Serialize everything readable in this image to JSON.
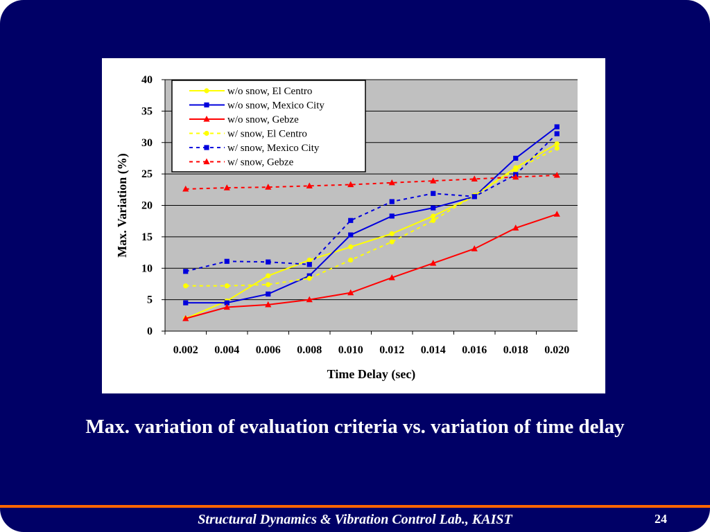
{
  "slide": {
    "caption": "Max. variation of evaluation criteria vs. variation of time delay",
    "footer": "Structural Dynamics & Vibration Control Lab., KAIST",
    "page_number": "24",
    "background_color": "#000066",
    "rule_color": "#ff6600"
  },
  "chart_data": {
    "type": "line",
    "title": "",
    "xlabel": "Time Delay (sec)",
    "ylabel": "Max. Variation (%)",
    "categories": [
      "0.002",
      "0.004",
      "0.006",
      "0.008",
      "0.010",
      "0.012",
      "0.014",
      "0.016",
      "0.018",
      "0.020"
    ],
    "ylim": [
      0,
      40
    ],
    "yticks": [
      0,
      5,
      10,
      15,
      20,
      25,
      30,
      35,
      40
    ],
    "grid": "horizontal",
    "plot_background": "#c0c0c0",
    "legend_position": "top-left",
    "series": [
      {
        "name": "w/o snow, El Centro",
        "color": "#ffff00",
        "marker": "circle",
        "dash": false,
        "values": [
          2.0,
          4.8,
          8.8,
          11.3,
          13.4,
          15.5,
          18.3,
          21.5,
          26.0,
          29.8
        ]
      },
      {
        "name": "w/o snow, Mexico City",
        "color": "#0000dd",
        "marker": "square",
        "dash": false,
        "values": [
          4.5,
          4.5,
          5.9,
          8.8,
          15.3,
          18.3,
          19.6,
          21.4,
          27.5,
          32.5
        ]
      },
      {
        "name": "w/o snow, Gebze",
        "color": "#ff0000",
        "marker": "triangle",
        "dash": false,
        "values": [
          2.0,
          3.8,
          4.2,
          5.0,
          6.1,
          8.5,
          10.8,
          13.1,
          16.4,
          18.6
        ]
      },
      {
        "name": "w/ snow, El Centro",
        "color": "#ffff00",
        "marker": "circle",
        "dash": true,
        "values": [
          7.2,
          7.2,
          7.4,
          8.4,
          11.3,
          14.2,
          17.6,
          21.6,
          25.7,
          29.1
        ]
      },
      {
        "name": "w/ snow, Mexico City",
        "color": "#0000dd",
        "marker": "square",
        "dash": true,
        "values": [
          9.5,
          11.1,
          11.0,
          10.6,
          17.6,
          20.6,
          21.9,
          21.4,
          24.9,
          31.4
        ]
      },
      {
        "name": "w/ snow, Gebze",
        "color": "#ff0000",
        "marker": "triangle",
        "dash": true,
        "values": [
          22.6,
          22.8,
          22.9,
          23.1,
          23.3,
          23.6,
          23.9,
          24.2,
          24.5,
          24.8
        ]
      }
    ]
  }
}
